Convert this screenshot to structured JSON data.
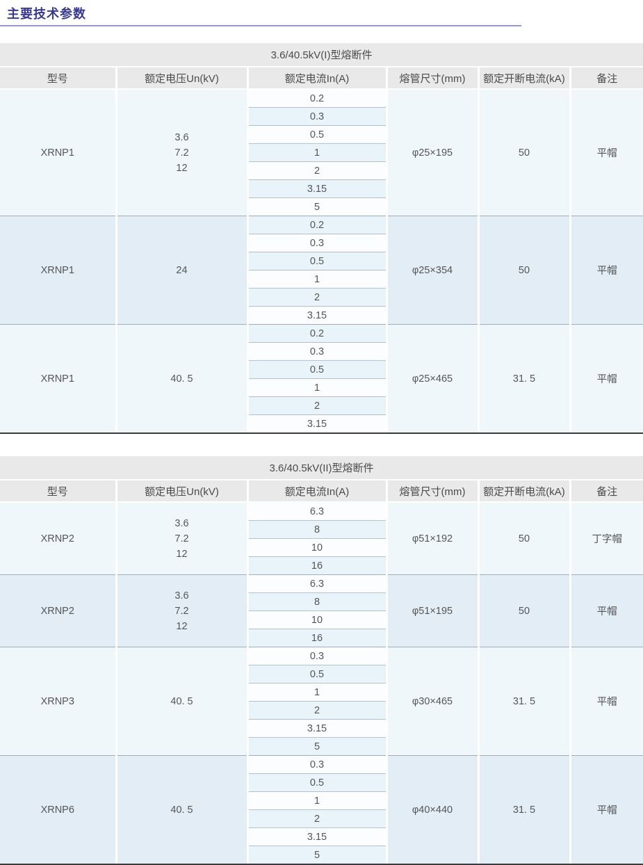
{
  "page": {
    "title": "主要技术参数"
  },
  "colors": {
    "heading_text": "#39398f",
    "heading_rule": "#9999c9",
    "header_bg": "#e9e9e9",
    "stripe_white": "#fcfdfe",
    "stripe_blue": "#e8f3fa",
    "block_light": "#f0f7fb",
    "block_blue": "#e2edf6",
    "table_bottom_border": "#3a3a3a"
  },
  "columns": [
    "型号",
    "额定电压Un(kV)",
    "额定电流In(A)",
    "熔管尺寸(mm)",
    "额定开断电流(kA)",
    "备注"
  ],
  "tables": [
    {
      "title": "3.6/40.5kV(I)型熔断件",
      "blocks": [
        {
          "model": "XRNP1",
          "voltage": "3.6\n7.2\n12",
          "currents": [
            "0.2",
            "0.3",
            "0.5",
            "1",
            "2",
            "3.15",
            "5"
          ],
          "size": "φ25×195",
          "breaking": "50",
          "note": "平帽"
        },
        {
          "model": "XRNP1",
          "voltage": "24",
          "currents": [
            "0.2",
            "0.3",
            "0.5",
            "1",
            "2",
            "3.15"
          ],
          "size": "φ25×354",
          "breaking": "50",
          "note": "平帽"
        },
        {
          "model": "XRNP1",
          "voltage": "40. 5",
          "currents": [
            "0.2",
            "0.3",
            "0.5",
            "1",
            "2",
            "3.15"
          ],
          "size": "φ25×465",
          "breaking": "31. 5",
          "note": "平帽"
        }
      ]
    },
    {
      "title": "3.6/40.5kV(II)型熔断件",
      "blocks": [
        {
          "model": "XRNP2",
          "voltage": "3.6\n7.2\n12",
          "currents": [
            "6.3",
            "8",
            "10",
            "16"
          ],
          "size": "φ51×192",
          "breaking": "50",
          "note": "丁字帽"
        },
        {
          "model": "XRNP2",
          "voltage": "3.6\n7.2\n12",
          "currents": [
            "6.3",
            "8",
            "10",
            "16"
          ],
          "size": "φ51×195",
          "breaking": "50",
          "note": "平帽"
        },
        {
          "model": "XRNP3",
          "voltage": "40. 5",
          "currents": [
            "0.3",
            "0.5",
            "1",
            "2",
            "3.15",
            "5"
          ],
          "size": "φ30×465",
          "breaking": "31. 5",
          "note": "平帽"
        },
        {
          "model": "XRNP6",
          "voltage": "40. 5",
          "currents": [
            "0.3",
            "0.5",
            "1",
            "2",
            "3.15",
            "5"
          ],
          "size": "φ40×440",
          "breaking": "31. 5",
          "note": "平帽"
        }
      ]
    }
  ]
}
